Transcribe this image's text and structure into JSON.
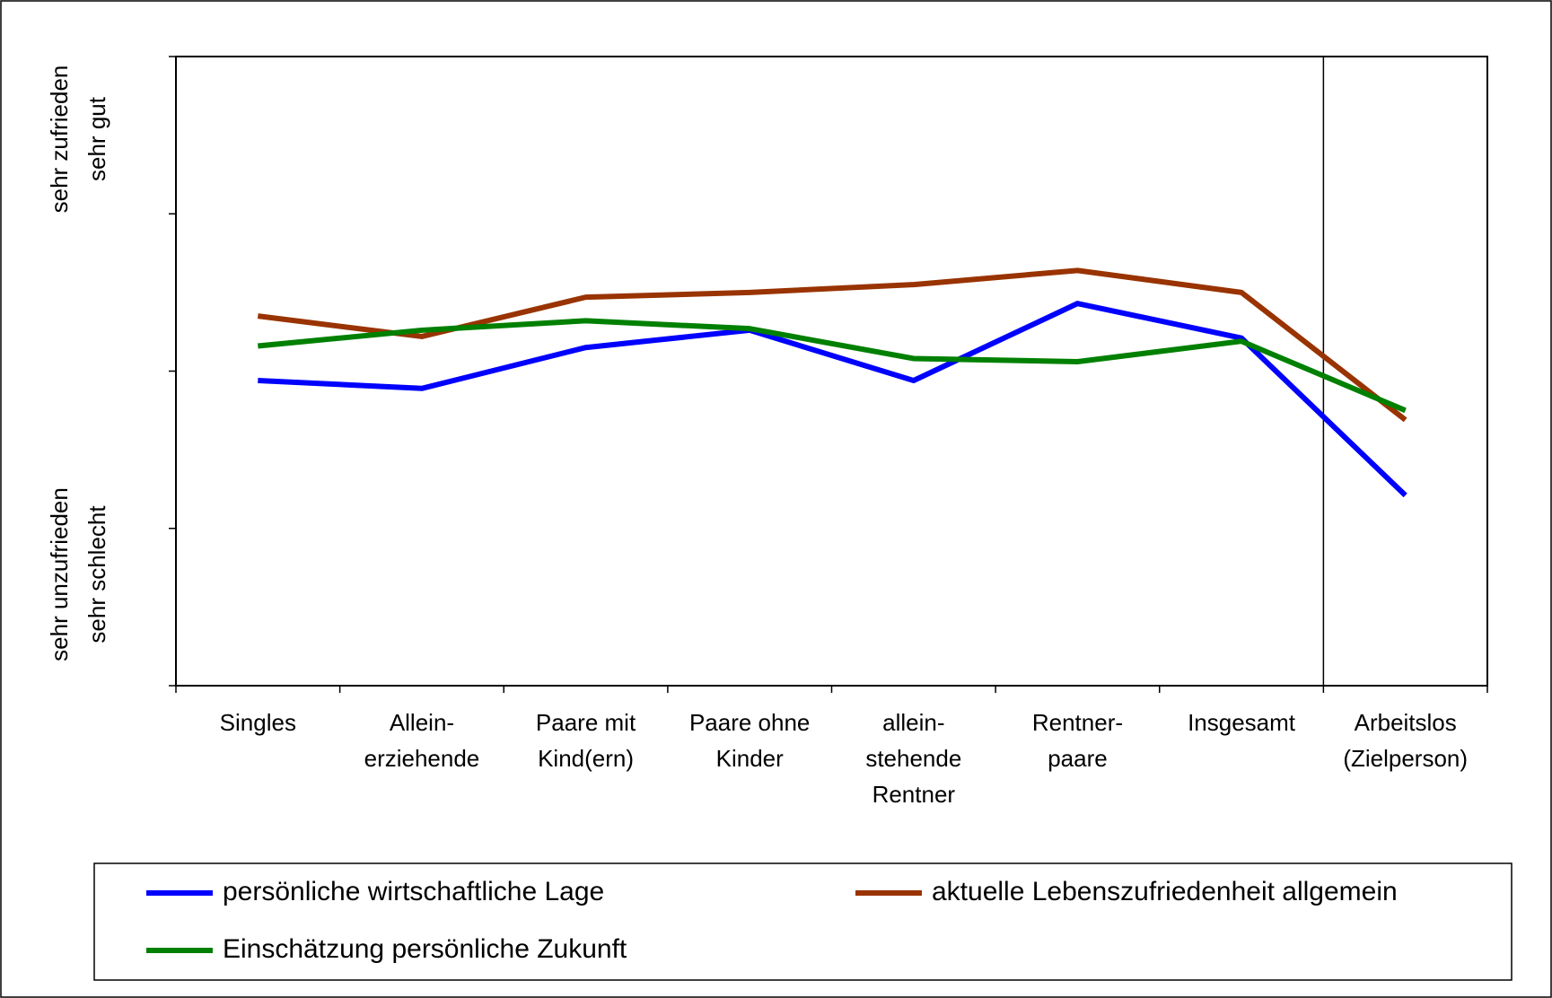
{
  "chart_data": {
    "type": "line",
    "y_label_top": [
      "sehr zufrieden",
      "sehr gut"
    ],
    "y_label_bottom": [
      "sehr unzufrieden",
      "sehr schlecht"
    ],
    "categories": [
      "Singles",
      "Allein-\nerziehende",
      "Paare mit\nKind(ern)",
      "Paare ohne\nKinder",
      "allein-\nstehende\nRentner",
      "Rentner-\npaare",
      "Insgesamt",
      "Arbeitslos\n(Zielperson)"
    ],
    "series": [
      {
        "name": "persönliche wirtschaftliche Lage",
        "color": "#0000ff",
        "values": [
          2.94,
          2.89,
          3.15,
          3.26,
          2.94,
          3.43,
          3.21,
          2.21
        ]
      },
      {
        "name": "aktuelle Lebenszufriedenheit allgemein",
        "color": "#993300",
        "values": [
          3.35,
          3.22,
          3.47,
          3.5,
          3.55,
          3.64,
          3.5,
          2.69
        ]
      },
      {
        "name": "Einschätzung persönliche Zukunft",
        "color": "#008000",
        "values": [
          3.16,
          3.26,
          3.32,
          3.27,
          3.08,
          3.06,
          3.19,
          2.75
        ]
      }
    ],
    "ylim": [
      1,
      5
    ],
    "yticks": [
      1,
      2,
      3,
      4,
      5
    ],
    "legend": "bottom"
  }
}
